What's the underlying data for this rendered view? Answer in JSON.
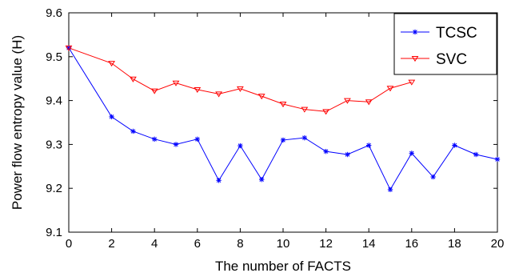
{
  "chart_data": {
    "type": "line",
    "xlabel": "The number of FACTS",
    "ylabel": "Power flow entropy value (H)",
    "xlim": [
      0,
      20
    ],
    "ylim": [
      9.1,
      9.6
    ],
    "xticks": [
      0,
      2,
      4,
      6,
      8,
      10,
      12,
      14,
      16,
      18,
      20
    ],
    "yticks": [
      9.1,
      9.2,
      9.3,
      9.4,
      9.5,
      9.6
    ],
    "xtick_labels": [
      "0",
      "2",
      "4",
      "6",
      "8",
      "10",
      "12",
      "14",
      "16",
      "18",
      "20"
    ],
    "ytick_labels": [
      "9.1",
      "9.2",
      "9.3",
      "9.4",
      "9.5",
      "9.6"
    ],
    "grid": false,
    "legend_position": "top-right",
    "series": [
      {
        "name": "TCSC",
        "color": "#0000ff",
        "marker": "star",
        "x": [
          0,
          2,
          3,
          4,
          5,
          6,
          7,
          8,
          9,
          10,
          11,
          12,
          13,
          14,
          15,
          16,
          17,
          18,
          19,
          20
        ],
        "y": [
          9.52,
          9.363,
          9.33,
          9.312,
          9.3,
          9.312,
          9.218,
          9.297,
          9.22,
          9.31,
          9.315,
          9.284,
          9.277,
          9.298,
          9.197,
          9.28,
          9.226,
          9.298,
          9.277,
          9.266
        ]
      },
      {
        "name": "SVC",
        "color": "#ff0000",
        "marker": "triangle-down",
        "x": [
          0,
          2,
          3,
          4,
          5,
          6,
          7,
          8,
          9,
          10,
          11,
          12,
          13,
          14,
          15,
          16
        ],
        "y": [
          9.52,
          9.485,
          9.449,
          9.422,
          9.44,
          9.425,
          9.415,
          9.427,
          9.41,
          9.392,
          9.38,
          9.375,
          9.4,
          9.397,
          9.428,
          9.442
        ]
      }
    ]
  }
}
